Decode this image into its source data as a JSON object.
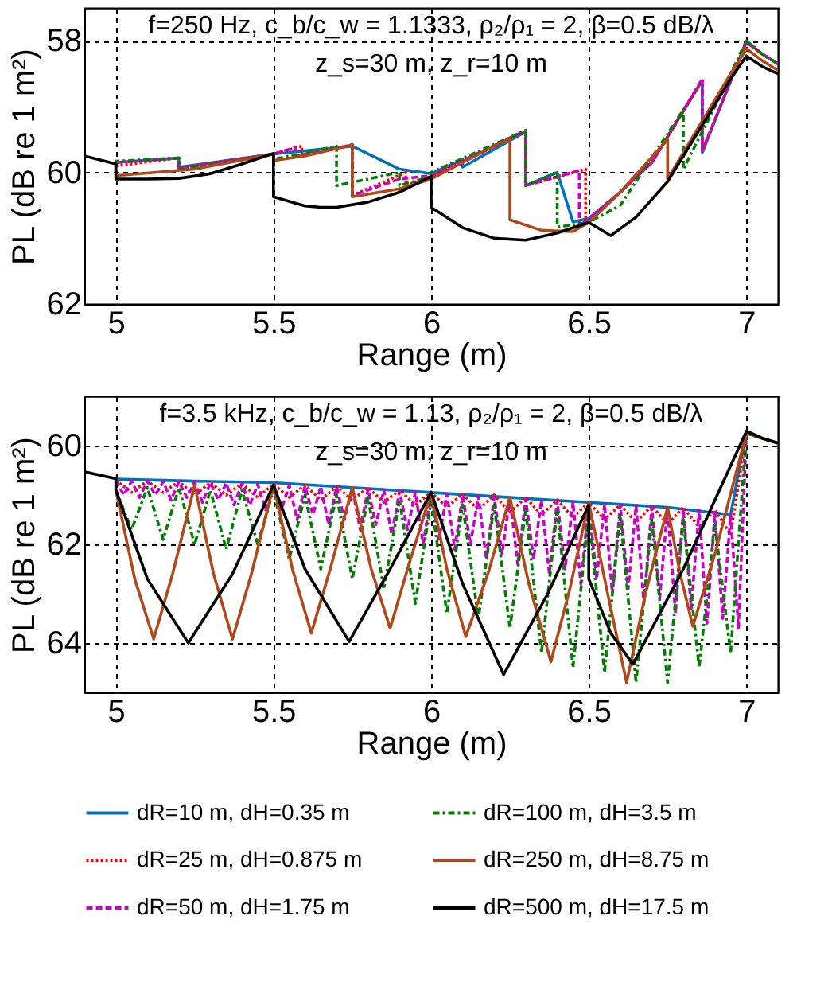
{
  "chart_data": [
    {
      "type": "line",
      "xlabel": "Range (m)",
      "ylabel": "PL (dB re 1 m²)",
      "xlim": [
        4.9,
        7.1
      ],
      "ylim": [
        62,
        57.5
      ],
      "xticks": [
        5,
        5.5,
        6,
        6.5,
        7
      ],
      "yticks": [
        58,
        60,
        62
      ],
      "grid": true,
      "legend": "bottom",
      "annotations": [
        "f=250 Hz, c_b/c_w = 1.1333, ρ₂/ρ₁ = 2, β=0.5 dB/λ",
        "z_s=30 m, z_r=10 m"
      ],
      "series": [
        {
          "name": "dR=10 m, dH=0.35 m",
          "color": "#0072bd",
          "line_style": "solid",
          "x": [
            5.0,
            5.2,
            5.2,
            5.5,
            5.75,
            5.9,
            6.0,
            6.1,
            6.1,
            6.3,
            6.3,
            6.4,
            6.45,
            6.5,
            6.6,
            6.7,
            6.86,
            6.86,
            7.0,
            7.05,
            7.1
          ],
          "values": [
            59.85,
            59.78,
            59.92,
            59.72,
            59.6,
            59.95,
            60.02,
            59.8,
            59.92,
            59.38,
            60.2,
            60.0,
            60.75,
            60.7,
            60.3,
            59.85,
            58.6,
            59.7,
            58.0,
            58.2,
            58.35
          ]
        },
        {
          "name": "dR=25 m, dH=0.875 m",
          "color": "#ff0000",
          "line_style": "dotted",
          "x": [
            5.0,
            5.2,
            5.2,
            5.5,
            5.59,
            5.59,
            5.75,
            5.75,
            5.92,
            5.92,
            6.0,
            6.3,
            6.3,
            6.49,
            6.49,
            6.6,
            6.7,
            6.86,
            6.86,
            7.0,
            7.05,
            7.1
          ],
          "values": [
            59.9,
            59.78,
            59.93,
            59.72,
            59.6,
            59.75,
            59.58,
            60.35,
            60.0,
            60.2,
            60.06,
            59.37,
            60.2,
            59.95,
            60.8,
            60.3,
            59.85,
            58.6,
            59.68,
            58.02,
            58.2,
            58.35
          ]
        },
        {
          "name": "dR=50 m, dH=1.75 m",
          "color": "#cc00cc",
          "line_style": "dashed",
          "x": [
            5.0,
            5.2,
            5.2,
            5.5,
            5.57,
            5.57,
            5.75,
            5.75,
            5.9,
            6.0,
            6.3,
            6.3,
            6.47,
            6.47,
            6.6,
            6.7,
            6.86,
            6.86,
            7.0,
            7.05,
            7.1
          ],
          "values": [
            59.85,
            59.78,
            59.95,
            59.72,
            59.62,
            59.75,
            59.58,
            60.35,
            60.1,
            60.05,
            59.36,
            60.2,
            59.97,
            60.82,
            60.3,
            59.85,
            58.58,
            59.67,
            58.02,
            58.2,
            58.35
          ]
        },
        {
          "name": "dR=100 m, dH=3.5 m",
          "color": "#008000",
          "line_style": "dashdot",
          "x": [
            5.0,
            5.0,
            5.2,
            5.2,
            5.35,
            5.5,
            5.5,
            5.7,
            5.7,
            5.9,
            5.9,
            6.0,
            6.0,
            6.3,
            6.3,
            6.4,
            6.4,
            6.5,
            6.6,
            6.8,
            6.8,
            6.9,
            7.0,
            7.05,
            7.1
          ],
          "values": [
            59.87,
            59.83,
            59.78,
            59.95,
            59.85,
            59.72,
            59.8,
            59.6,
            60.2,
            60.0,
            60.2,
            60.06,
            60.0,
            59.36,
            60.2,
            60.0,
            60.83,
            60.76,
            60.5,
            59.05,
            59.95,
            59.0,
            58.0,
            58.2,
            58.35
          ]
        },
        {
          "name": "dR=250 m, dH=8.75 m",
          "color": "#b0481a",
          "line_style": "solid",
          "x": [
            5.0,
            5.0,
            5.25,
            5.5,
            5.5,
            5.6,
            5.75,
            5.75,
            5.9,
            6.0,
            6.0,
            6.1,
            6.25,
            6.25,
            6.35,
            6.45,
            6.5,
            6.6,
            6.75,
            6.75,
            6.85,
            6.95,
            7.0,
            7.05,
            7.1
          ],
          "values": [
            59.9,
            60.05,
            59.95,
            59.72,
            59.82,
            59.75,
            59.58,
            60.37,
            60.25,
            60.1,
            60.1,
            59.85,
            59.48,
            60.72,
            60.88,
            60.9,
            60.76,
            60.3,
            59.5,
            60.1,
            59.3,
            58.5,
            58.12,
            58.3,
            58.45
          ]
        },
        {
          "name": "dR=500 m, dH=17.5 m",
          "color": "#000000",
          "line_style": "solid",
          "x": [
            4.9,
            5.0,
            5.0,
            5.1,
            5.2,
            5.3,
            5.4,
            5.5,
            5.5,
            5.6,
            5.65,
            5.7,
            5.8,
            5.9,
            6.0,
            6.0,
            6.1,
            6.2,
            6.3,
            6.4,
            6.5,
            6.57,
            6.65,
            6.75,
            6.85,
            6.95,
            7.0,
            7.05,
            7.1
          ],
          "values": [
            59.75,
            59.87,
            60.1,
            60.1,
            60.09,
            60.02,
            59.87,
            59.71,
            60.37,
            60.51,
            60.53,
            60.53,
            60.45,
            60.3,
            60.06,
            60.53,
            60.84,
            61.0,
            61.03,
            60.92,
            60.76,
            60.96,
            60.68,
            60.14,
            59.36,
            58.58,
            58.23,
            58.39,
            58.5
          ]
        }
      ]
    },
    {
      "type": "line",
      "xlabel": "Range (m)",
      "ylabel": "PL (dB re 1 m²)",
      "xlim": [
        4.9,
        7.1
      ],
      "ylim": [
        65,
        59
      ],
      "xticks": [
        5,
        5.5,
        6,
        6.5,
        7
      ],
      "yticks": [
        60,
        62,
        64
      ],
      "grid": true,
      "legend": "bottom",
      "annotations": [
        "f=3.5 kHz, c_b/c_w = 1.13, ρ₂/ρ₁ = 2, β=0.5 dB/λ",
        "z_s=30 m, z_r=10 m"
      ],
      "series": [
        {
          "name": "dR=10 m, dH=0.35 m",
          "color": "#0072bd",
          "line_style": "solid",
          "x": [
            5.0,
            5.25,
            5.5,
            5.75,
            6.0,
            6.25,
            6.5,
            6.75,
            6.95,
            7.0,
            7.05,
            7.1
          ],
          "values": [
            60.68,
            60.72,
            60.75,
            60.85,
            60.95,
            61.05,
            61.15,
            61.25,
            61.4,
            59.7,
            59.85,
            59.95
          ]
        },
        {
          "name": "dR=25 m, dH=0.875 m",
          "color": "#ff0000",
          "line_style": "dotted",
          "x": [
            5.0,
            5.05,
            5.1,
            5.15,
            5.2,
            5.25,
            5.3,
            5.35,
            5.4,
            5.45,
            5.5,
            5.55,
            5.6,
            5.65,
            5.7,
            5.75,
            5.8,
            5.85,
            5.9,
            5.95,
            6.0,
            6.05,
            6.1,
            6.15,
            6.2,
            6.25,
            6.3,
            6.35,
            6.4,
            6.45,
            6.5,
            6.55,
            6.6,
            6.65,
            6.7,
            6.75,
            6.8,
            6.85,
            6.9,
            6.95,
            7.0,
            7.05,
            7.1
          ],
          "values": [
            60.7,
            60.95,
            60.72,
            60.95,
            60.73,
            61.0,
            60.75,
            61.0,
            60.77,
            61.05,
            60.78,
            61.05,
            60.8,
            61.1,
            60.83,
            61.1,
            60.85,
            61.15,
            60.9,
            61.2,
            60.95,
            61.25,
            60.98,
            61.3,
            61.0,
            61.35,
            61.05,
            61.4,
            61.1,
            61.45,
            61.15,
            61.5,
            61.2,
            61.55,
            61.22,
            61.6,
            61.25,
            61.65,
            61.3,
            61.8,
            59.75,
            59.85,
            59.95
          ]
        },
        {
          "name": "dR=50 m, dH=1.75 m",
          "color": "#cc00cc",
          "line_style": "dashed",
          "x": [
            5.0,
            5.025,
            5.05,
            5.075,
            5.1,
            5.125,
            5.15,
            5.175,
            5.2,
            5.225,
            5.25,
            5.275,
            5.3,
            5.325,
            5.35,
            5.375,
            5.4,
            5.425,
            5.45,
            5.475,
            5.5,
            5.525,
            5.55,
            5.575,
            5.6,
            5.625,
            5.65,
            5.675,
            5.7,
            5.725,
            5.75,
            5.775,
            5.8,
            5.825,
            5.85,
            5.875,
            5.9,
            5.925,
            5.95,
            5.975,
            6.0,
            6.025,
            6.05,
            6.075,
            6.1,
            6.125,
            6.15,
            6.175,
            6.2,
            6.225,
            6.25,
            6.275,
            6.3,
            6.325,
            6.35,
            6.375,
            6.4,
            6.425,
            6.45,
            6.475,
            6.5,
            6.525,
            6.55,
            6.575,
            6.6,
            6.625,
            6.65,
            6.675,
            6.7,
            6.725,
            6.75,
            6.775,
            6.8,
            6.825,
            6.85,
            6.875,
            6.9,
            6.925,
            6.95,
            6.975,
            7.0,
            7.05,
            7.1
          ],
          "values": [
            60.7,
            61.0,
            60.72,
            61.05,
            60.72,
            61.0,
            60.73,
            61.1,
            60.73,
            61.05,
            60.74,
            61.15,
            60.75,
            61.1,
            60.76,
            61.2,
            60.77,
            61.2,
            60.78,
            61.3,
            60.78,
            61.3,
            60.8,
            61.5,
            60.82,
            61.4,
            60.83,
            61.6,
            60.84,
            61.5,
            60.86,
            61.7,
            60.88,
            61.6,
            60.9,
            61.8,
            60.92,
            61.7,
            60.94,
            62.0,
            60.96,
            61.9,
            60.98,
            62.1,
            61.0,
            62.0,
            61.02,
            62.3,
            61.04,
            62.2,
            61.06,
            62.4,
            61.08,
            62.3,
            61.1,
            62.6,
            61.12,
            62.5,
            61.14,
            62.8,
            61.16,
            62.7,
            61.18,
            63.0,
            61.2,
            62.9,
            61.22,
            63.2,
            61.24,
            63.1,
            61.26,
            63.4,
            61.28,
            63.3,
            61.3,
            63.6,
            61.35,
            63.5,
            61.4,
            63.7,
            59.72,
            59.85,
            59.95
          ]
        },
        {
          "name": "dR=100 m, dH=3.5 m",
          "color": "#008000",
          "line_style": "dashdot",
          "x": [
            5.0,
            5.05,
            5.1,
            5.15,
            5.2,
            5.25,
            5.3,
            5.35,
            5.4,
            5.45,
            5.5,
            5.55,
            5.6,
            5.65,
            5.7,
            5.75,
            5.8,
            5.85,
            5.9,
            5.95,
            6.0,
            6.05,
            6.1,
            6.15,
            6.2,
            6.25,
            6.3,
            6.35,
            6.4,
            6.45,
            6.5,
            6.55,
            6.6,
            6.65,
            6.7,
            6.75,
            6.8,
            6.85,
            6.9,
            6.95,
            7.0,
            7.05,
            7.1
          ],
          "values": [
            60.9,
            61.7,
            60.85,
            61.9,
            60.85,
            62.0,
            60.9,
            62.1,
            60.9,
            62.0,
            60.9,
            62.3,
            61.0,
            62.5,
            61.0,
            62.7,
            61.05,
            62.9,
            61.1,
            63.2,
            61.1,
            63.4,
            61.2,
            63.5,
            61.2,
            63.7,
            61.3,
            64.2,
            61.3,
            64.5,
            61.35,
            64.6,
            61.4,
            64.8,
            61.5,
            64.8,
            61.5,
            64.5,
            61.6,
            64.2,
            59.72,
            59.85,
            59.95
          ]
        },
        {
          "name": "dR=250 m, dH=8.75 m",
          "color": "#b0481a",
          "line_style": "solid",
          "x": [
            5.0,
            5.06,
            5.12,
            5.18,
            5.25,
            5.31,
            5.37,
            5.43,
            5.5,
            5.56,
            5.62,
            5.68,
            5.75,
            5.81,
            5.87,
            5.93,
            6.0,
            6.05,
            6.11,
            6.18,
            6.25,
            6.31,
            6.38,
            6.44,
            6.5,
            6.56,
            6.62,
            6.68,
            6.75,
            6.79,
            6.83,
            6.9,
            7.0,
            7.05,
            7.1
          ],
          "values": [
            60.9,
            62.7,
            63.92,
            62.6,
            60.8,
            62.6,
            63.92,
            62.6,
            60.8,
            62.5,
            63.8,
            62.5,
            60.85,
            62.5,
            63.7,
            62.4,
            60.95,
            62.5,
            63.87,
            62.6,
            61.05,
            62.8,
            64.38,
            62.9,
            61.15,
            63.0,
            64.8,
            63.0,
            61.25,
            62.6,
            63.66,
            62.2,
            59.75,
            59.85,
            59.95
          ]
        },
        {
          "name": "dR=500 m, dH=17.5 m",
          "color": "#000000",
          "line_style": "solid",
          "x": [
            4.9,
            5.0,
            5.0,
            5.1,
            5.23,
            5.37,
            5.5,
            5.6,
            5.74,
            5.87,
            6.0,
            6.1,
            6.23,
            6.37,
            6.5,
            6.5,
            6.57,
            6.64,
            6.8,
            7.0,
            7.05,
            7.1
          ],
          "values": [
            60.53,
            60.67,
            60.9,
            62.7,
            64.0,
            62.6,
            60.8,
            62.5,
            63.97,
            62.5,
            60.94,
            62.8,
            64.64,
            63.0,
            61.2,
            62.7,
            63.8,
            64.43,
            62.5,
            59.71,
            59.85,
            59.95
          ]
        }
      ]
    }
  ]
}
